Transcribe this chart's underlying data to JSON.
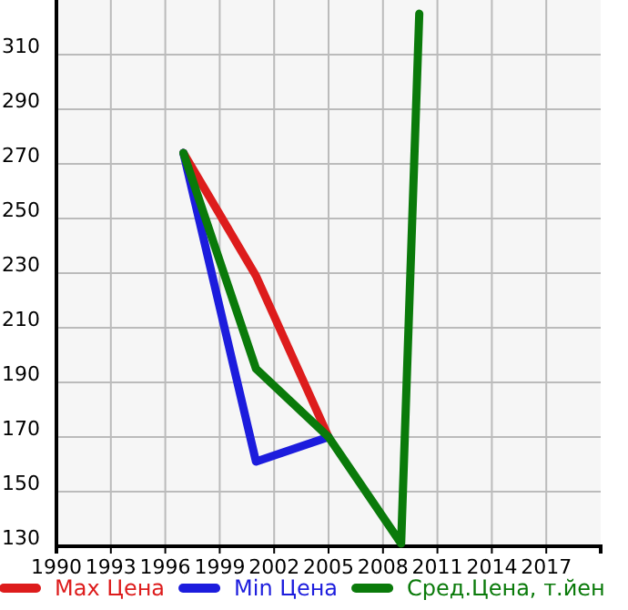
{
  "chart_data": {
    "type": "line",
    "x": [
      1997,
      2001,
      2005,
      2009,
      2010
    ],
    "series": [
      {
        "name": "Max Цена",
        "color": "#dd1c1c",
        "values": [
          274,
          229,
          170,
          null,
          null
        ]
      },
      {
        "name": "Min Цена",
        "color": "#1c1cdd",
        "values": [
          274,
          161,
          170,
          null,
          null
        ]
      },
      {
        "name": "Сред.Цена, т.йен",
        "color": "#0a7a0a",
        "values": [
          274,
          195,
          170,
          131,
          325
        ]
      }
    ],
    "xlim": [
      1990,
      2020
    ],
    "xticks": [
      1990,
      1993,
      1996,
      1999,
      2002,
      2005,
      2008,
      2011,
      2014,
      2017
    ],
    "ylim": [
      130,
      330
    ],
    "yticks": [
      130,
      150,
      170,
      190,
      210,
      230,
      250,
      270,
      290,
      310
    ],
    "grid": true,
    "legend": "bottom",
    "marker": "none",
    "line_style": "solid"
  }
}
